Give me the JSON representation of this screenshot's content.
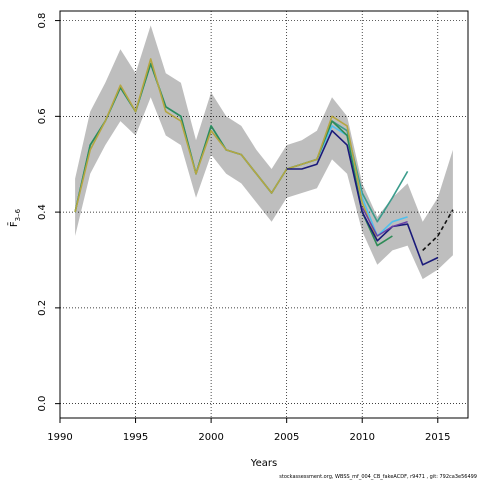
{
  "chart_data": {
    "type": "line",
    "title": "",
    "xlabel": "Years",
    "ylabel": "F̄",
    "ylabel_sub": "3–6",
    "xlim": [
      1990,
      2017
    ],
    "ylim": [
      -0.03,
      0.82
    ],
    "xticks": [
      1990,
      1995,
      2000,
      2005,
      2010,
      2015
    ],
    "yticks": [
      0.0,
      0.2,
      0.4,
      0.6,
      0.8
    ],
    "ytick_labels": [
      "0.0",
      "0.2",
      "0.4",
      "0.6",
      "0.8"
    ],
    "grid": "dotted",
    "confidence_band": {
      "color": "#bebebe",
      "x": [
        1991,
        1992,
        1993,
        1994,
        1995,
        1996,
        1997,
        1998,
        1999,
        2000,
        2001,
        2002,
        2003,
        2004,
        2005,
        2006,
        2007,
        2008,
        2009,
        2010,
        2011,
        2012,
        2013,
        2014,
        2015,
        2016
      ],
      "upper": [
        0.47,
        0.61,
        0.67,
        0.74,
        0.69,
        0.79,
        0.69,
        0.67,
        0.55,
        0.65,
        0.6,
        0.58,
        0.53,
        0.49,
        0.54,
        0.55,
        0.57,
        0.64,
        0.6,
        0.46,
        0.39,
        0.43,
        0.46,
        0.38,
        0.43,
        0.53
      ],
      "lower": [
        0.35,
        0.48,
        0.54,
        0.59,
        0.56,
        0.64,
        0.56,
        0.54,
        0.43,
        0.52,
        0.48,
        0.46,
        0.42,
        0.38,
        0.43,
        0.44,
        0.45,
        0.51,
        0.48,
        0.36,
        0.29,
        0.32,
        0.33,
        0.26,
        0.28,
        0.31
      ]
    },
    "series": [
      {
        "color": "#3b9c8c",
        "width": 1.6,
        "dash": "",
        "x": [
          1991,
          1992,
          1993,
          1994,
          1995,
          1996,
          1997,
          1998,
          1999,
          2000,
          2001,
          2002,
          2003,
          2004,
          2005,
          2006,
          2007,
          2008,
          2009,
          2010,
          2011,
          2012,
          2013
        ],
        "y": [
          0.4,
          0.54,
          0.59,
          0.66,
          0.61,
          0.71,
          0.62,
          0.6,
          0.48,
          0.58,
          0.53,
          0.52,
          0.48,
          0.44,
          0.49,
          0.5,
          0.51,
          0.59,
          0.57,
          0.44,
          0.38,
          0.43,
          0.485
        ]
      },
      {
        "color": "#4fc0ee",
        "width": 1.6,
        "dash": "",
        "x": [
          1991,
          1992,
          1993,
          1994,
          1995,
          1996,
          1997,
          1998,
          1999,
          2000,
          2001,
          2002,
          2003,
          2004,
          2005,
          2006,
          2007,
          2008,
          2009,
          2010,
          2011,
          2012,
          2013
        ],
        "y": [
          0.4,
          0.54,
          0.59,
          0.66,
          0.61,
          0.71,
          0.62,
          0.6,
          0.48,
          0.58,
          0.53,
          0.52,
          0.48,
          0.44,
          0.49,
          0.5,
          0.51,
          0.58,
          0.56,
          0.43,
          0.35,
          0.38,
          0.39
        ]
      },
      {
        "color": "#2e8b57",
        "width": 1.6,
        "dash": "",
        "x": [
          1991,
          1992,
          1993,
          1994,
          1995,
          1996,
          1997,
          1998,
          1999,
          2000,
          2001,
          2002,
          2003,
          2004,
          2005,
          2006,
          2007,
          2008,
          2009,
          2010,
          2011,
          2012
        ],
        "y": [
          0.4,
          0.54,
          0.59,
          0.66,
          0.61,
          0.71,
          0.62,
          0.6,
          0.48,
          0.58,
          0.53,
          0.52,
          0.48,
          0.44,
          0.49,
          0.5,
          0.51,
          0.59,
          0.56,
          0.4,
          0.33,
          0.35
        ]
      },
      {
        "color": "#b5a642",
        "width": 1.6,
        "dash": "",
        "x": [
          1991,
          1992,
          1993,
          1994,
          1995,
          1996,
          1997,
          1998,
          1999,
          2000,
          2001,
          2002,
          2003,
          2004,
          2005,
          2006,
          2007,
          2008,
          2009,
          2010,
          2011
        ],
        "y": [
          0.4,
          0.53,
          0.59,
          0.665,
          0.61,
          0.72,
          0.61,
          0.59,
          0.48,
          0.57,
          0.53,
          0.52,
          0.48,
          0.44,
          0.49,
          0.5,
          0.51,
          0.6,
          0.58,
          0.42,
          0.34
        ]
      },
      {
        "color": "#1a1a7a",
        "width": 1.6,
        "dash": "",
        "x": [
          2005,
          2006,
          2007,
          2008,
          2009,
          2010,
          2011,
          2012,
          2013,
          2014,
          2015
        ],
        "y": [
          0.49,
          0.49,
          0.5,
          0.57,
          0.54,
          0.4,
          0.34,
          0.37,
          0.375,
          0.29,
          0.305
        ]
      },
      {
        "color": "#6a3fa8",
        "width": 1.4,
        "dash": "",
        "x": [
          2010,
          2011,
          2012,
          2013
        ],
        "y": [
          0.41,
          0.35,
          0.37,
          0.38
        ]
      },
      {
        "color": "#111111",
        "width": 1.6,
        "dash": "4,3",
        "x": [
          2014,
          2015,
          2016
        ],
        "y": [
          0.32,
          0.35,
          0.405
        ]
      }
    ]
  },
  "footer_note": "stockassessment.org, WBSS_mf_004_CB_fakeACDF, r9471 , git: 792ca3e56499"
}
